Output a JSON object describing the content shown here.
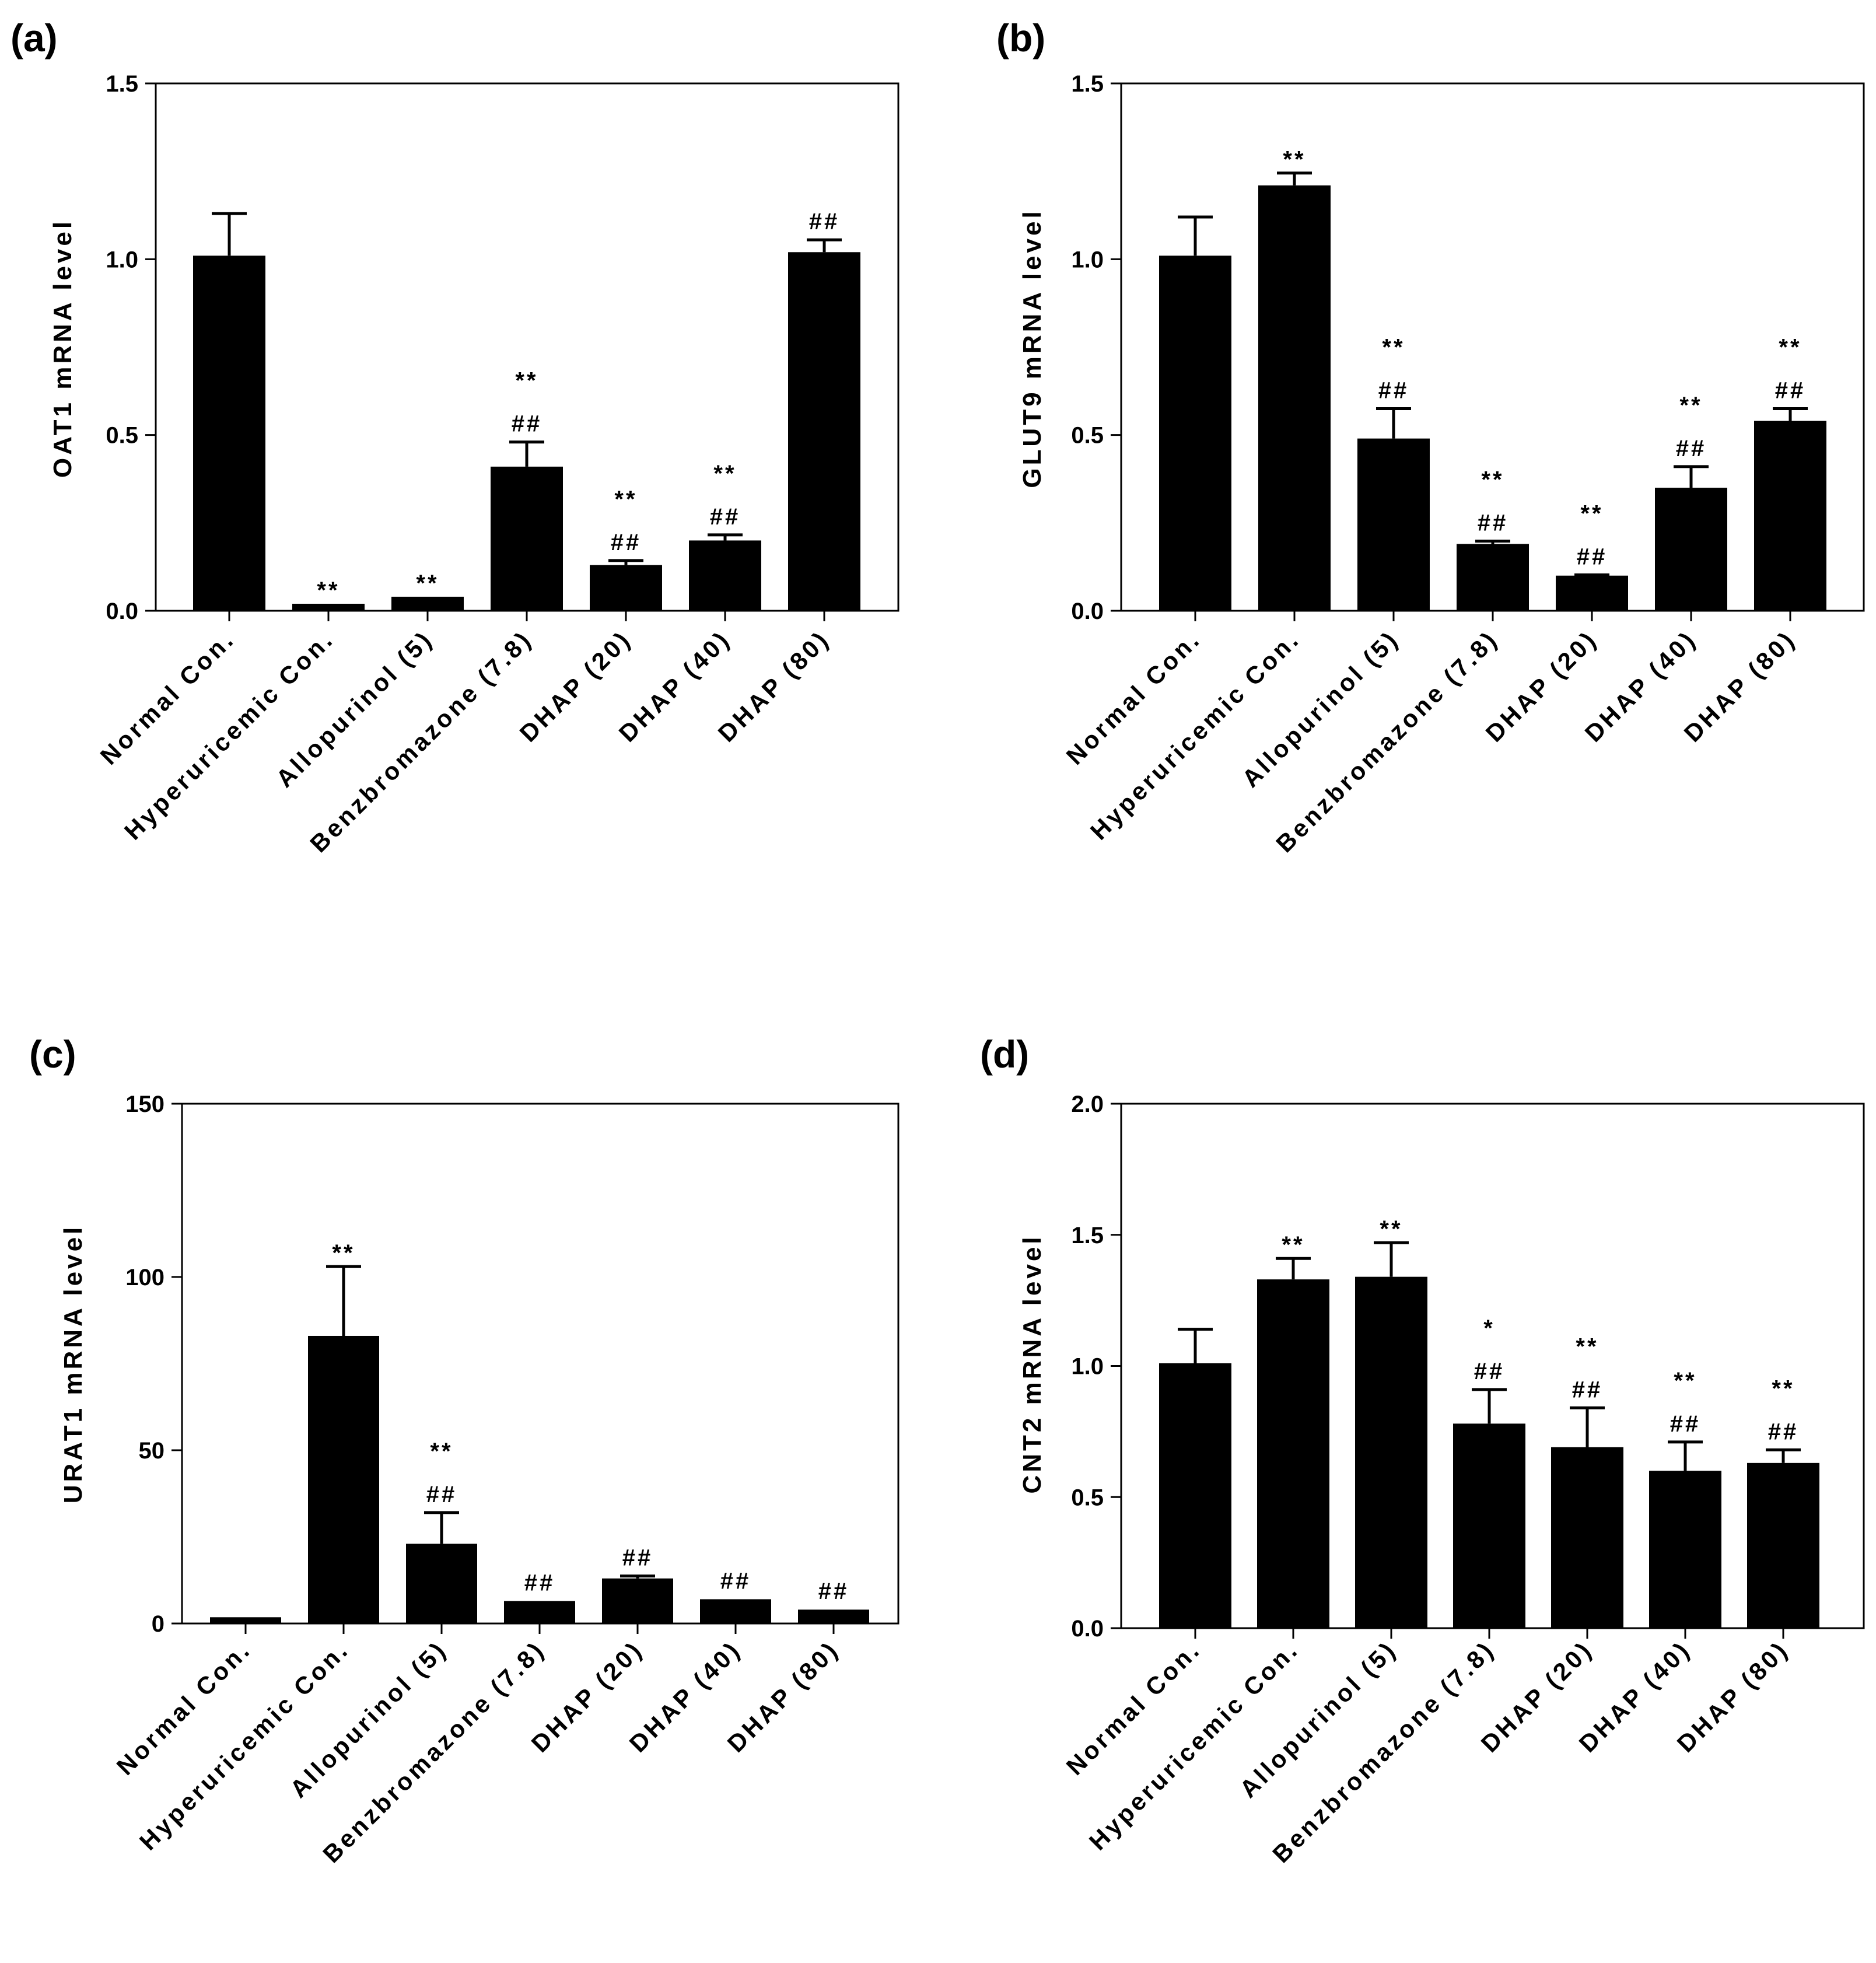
{
  "figure": {
    "colors": {
      "bar": "#000000",
      "axis": "#000000",
      "background": "#ffffff"
    }
  },
  "chart_data": [
    {
      "panel": "(a)",
      "type": "bar",
      "categories": [
        "Normal Con.",
        "Hyperuricemic Con.",
        "Allopurinol (5)",
        "Benzbromazone (7.8)",
        "DHAP (20)",
        "DHAP (40)",
        "DHAP (80)"
      ],
      "values": [
        1.01,
        0.02,
        0.04,
        0.41,
        0.13,
        0.2,
        1.02
      ],
      "errors": [
        0.12,
        0.0,
        0.0,
        0.07,
        0.013,
        0.016,
        0.035
      ],
      "significance": [
        [],
        [
          "**"
        ],
        [
          "**"
        ],
        [
          "**",
          "##"
        ],
        [
          "**",
          "##"
        ],
        [
          "**",
          "##"
        ],
        [
          "##"
        ]
      ],
      "xlabel": "",
      "ylabel": "OAT1 mRNA level",
      "ylim": [
        0,
        1.5
      ],
      "yticks": [
        0.0,
        0.5,
        1.0,
        1.5
      ],
      "ytick_labels": [
        "0.0",
        "0.5",
        "1.0",
        "1.5"
      ]
    },
    {
      "panel": "(b)",
      "type": "bar",
      "categories": [
        "Normal Con.",
        "Hyperuricemic Con.",
        "Allopurinol (5)",
        "Benzbromazone (7.8)",
        "DHAP (20)",
        "DHAP (40)",
        "DHAP (80)"
      ],
      "values": [
        1.01,
        1.21,
        0.49,
        0.19,
        0.1,
        0.35,
        0.54
      ],
      "errors": [
        0.11,
        0.035,
        0.085,
        0.008,
        0.002,
        0.06,
        0.035
      ],
      "significance": [
        [],
        [
          "**"
        ],
        [
          "**",
          "##"
        ],
        [
          "**",
          "##"
        ],
        [
          "**",
          "##"
        ],
        [
          "**",
          "##"
        ],
        [
          "**",
          "##"
        ]
      ],
      "xlabel": "",
      "ylabel": "GLUT9 mRNA level",
      "ylim": [
        0,
        1.5
      ],
      "yticks": [
        0.0,
        0.5,
        1.0,
        1.5
      ],
      "ytick_labels": [
        "0.0",
        "0.5",
        "1.0",
        "1.5"
      ]
    },
    {
      "panel": "(c)",
      "type": "bar",
      "categories": [
        "Normal Con.",
        "Hyperuricemic Con.",
        "Allopurinol (5)",
        "Benzbromazone (7.8)",
        "DHAP (20)",
        "DHAP (40)",
        "DHAP (80)"
      ],
      "values": [
        1.8,
        83,
        23,
        6.5,
        13,
        7,
        4
      ],
      "errors": [
        0,
        20,
        9,
        0,
        0.7,
        0,
        0
      ],
      "significance": [
        [],
        [
          "**"
        ],
        [
          "**",
          "##"
        ],
        [
          "##"
        ],
        [
          "##"
        ],
        [
          "##"
        ],
        [
          "##"
        ]
      ],
      "xlabel": "",
      "ylabel": "URAT1 mRNA level",
      "ylim": [
        0,
        150
      ],
      "yticks": [
        0,
        50,
        100,
        150
      ],
      "ytick_labels": [
        "0",
        "50",
        "100",
        "150"
      ]
    },
    {
      "panel": "(d)",
      "type": "bar",
      "categories": [
        "Normal Con.",
        "Hyperuricemic Con.",
        "Allopurinol (5)",
        "Benzbromazone (7.8)",
        "DHAP (20)",
        "DHAP (40)",
        "DHAP (80)"
      ],
      "values": [
        1.01,
        1.33,
        1.34,
        0.78,
        0.69,
        0.6,
        0.63
      ],
      "errors": [
        0.13,
        0.08,
        0.13,
        0.13,
        0.15,
        0.11,
        0.05
      ],
      "significance": [
        [],
        [
          "**"
        ],
        [
          "**"
        ],
        [
          "*",
          "##"
        ],
        [
          "**",
          "##"
        ],
        [
          "**",
          "##"
        ],
        [
          "**",
          "##"
        ]
      ],
      "xlabel": "",
      "ylabel": "CNT2 mRNA level",
      "ylim": [
        0,
        2.0
      ],
      "yticks": [
        0.0,
        0.5,
        1.0,
        1.5,
        2.0
      ],
      "ytick_labels": [
        "0.0",
        "0.5",
        "1.0",
        "1.5",
        "2.0"
      ]
    }
  ]
}
